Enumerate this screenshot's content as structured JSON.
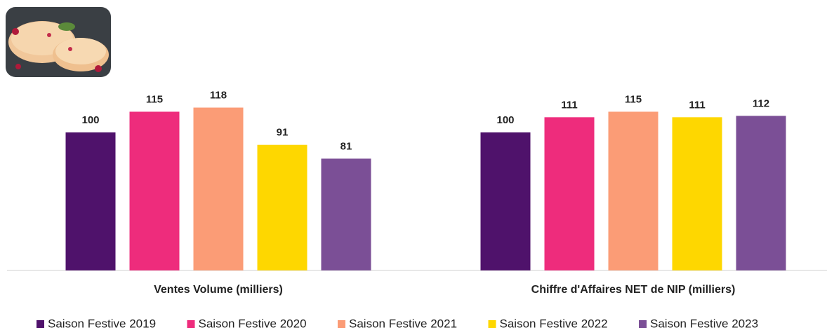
{
  "chart_data": {
    "type": "bar",
    "categories": [
      "Ventes Volume (milliers)",
      "Chiffre d'Affaires NET de NIP (milliers)"
    ],
    "series": [
      {
        "name": "Saison Festive 2019",
        "color": "#4f126b",
        "values": [
          100,
          100
        ]
      },
      {
        "name": "Saison Festive 2020",
        "color": "#ee2c7c",
        "values": [
          115,
          111
        ]
      },
      {
        "name": "Saison Festive 2021",
        "color": "#fb9c76",
        "values": [
          118,
          115
        ]
      },
      {
        "name": "Saison Festive 2022",
        "color": "#fed700",
        "values": [
          91,
          111
        ]
      },
      {
        "name": "Saison Festive 2023",
        "color": "#7b4f96",
        "values": [
          81,
          112
        ]
      }
    ]
  }
}
